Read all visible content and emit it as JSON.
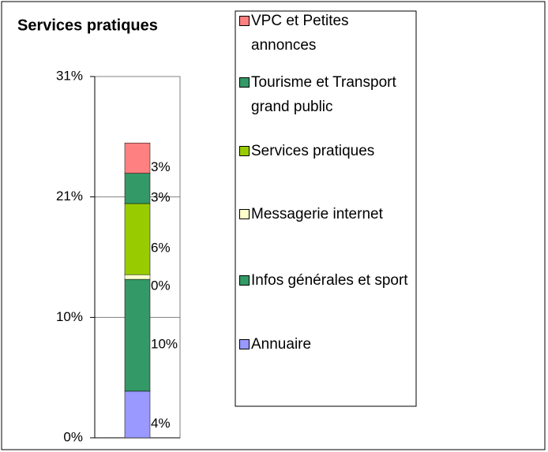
{
  "chart_data": {
    "type": "stacked_bar",
    "title": "Services pratiques",
    "categories": [
      null
    ],
    "series": [
      {
        "name": "Annuaire",
        "color": "#9999ff",
        "values": [
          4.0
        ],
        "value_labels": [
          "4%"
        ]
      },
      {
        "name": "Infos générales et sport",
        "color": "#339966",
        "values": [
          9.6
        ],
        "value_labels": [
          "10%"
        ]
      },
      {
        "name": "Messagerie internet",
        "color": "#ffffcc",
        "values": [
          0.4
        ],
        "value_labels": [
          "0%"
        ]
      },
      {
        "name": "Services pratiques",
        "color": "#99cc00",
        "values": [
          6.1
        ],
        "value_labels": [
          "6%"
        ]
      },
      {
        "name": "Tourisme et Transport grand public",
        "color": "#339966",
        "values": [
          2.6
        ],
        "value_labels": [
          "3%"
        ]
      },
      {
        "name": "VPC et Petites annonces",
        "color": "#ff8080",
        "values": [
          2.6
        ],
        "value_labels": [
          "3%"
        ]
      }
    ],
    "ylim": [
      0,
      31
    ],
    "yticks": [
      {
        "value": 0,
        "label": "0%"
      },
      {
        "value": 10.33,
        "label": "10%"
      },
      {
        "value": 20.67,
        "label": "21%"
      },
      {
        "value": 31,
        "label": "31%"
      }
    ],
    "grid": true,
    "legend": "right"
  }
}
